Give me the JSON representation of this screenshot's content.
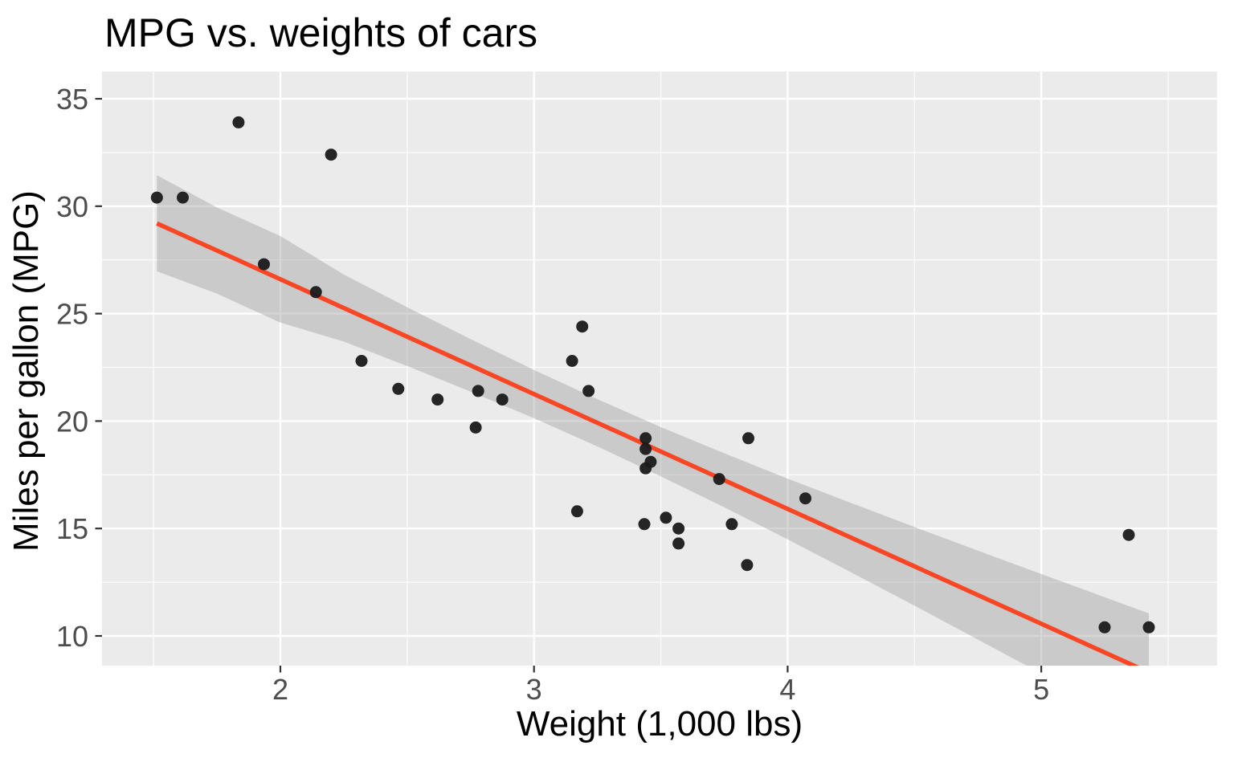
{
  "chart_data": {
    "type": "scatter",
    "title": "MPG vs. weights of cars",
    "xlabel": "Weight (1,000 lbs)",
    "ylabel": "Miles per gallon (MPG)",
    "x_ticks": [
      2,
      3,
      4,
      5
    ],
    "y_ticks": [
      10,
      15,
      20,
      25,
      30,
      35
    ],
    "xlim": [
      1.2968,
      5.6934
    ],
    "ylim": [
      8.617,
      36.271
    ],
    "grid": {
      "major": true,
      "minor": true,
      "legend_position": "none"
    },
    "points": [
      [
        2.62,
        21.0
      ],
      [
        2.875,
        21.0
      ],
      [
        2.32,
        22.8
      ],
      [
        3.215,
        21.4
      ],
      [
        3.44,
        18.7
      ],
      [
        3.46,
        18.1
      ],
      [
        3.57,
        14.3
      ],
      [
        3.19,
        24.4
      ],
      [
        3.15,
        22.8
      ],
      [
        3.44,
        19.2
      ],
      [
        3.44,
        17.8
      ],
      [
        4.07,
        16.4
      ],
      [
        3.73,
        17.3
      ],
      [
        3.78,
        15.2
      ],
      [
        5.25,
        10.4
      ],
      [
        5.424,
        10.4
      ],
      [
        5.345,
        14.7
      ],
      [
        2.2,
        32.4
      ],
      [
        1.615,
        30.4
      ],
      [
        1.835,
        33.9
      ],
      [
        2.465,
        21.5
      ],
      [
        3.52,
        15.5
      ],
      [
        3.435,
        15.2
      ],
      [
        3.84,
        13.3
      ],
      [
        3.845,
        19.2
      ],
      [
        1.935,
        27.3
      ],
      [
        2.14,
        26.0
      ],
      [
        1.513,
        30.4
      ],
      [
        3.17,
        15.8
      ],
      [
        2.77,
        19.7
      ],
      [
        3.57,
        15.0
      ],
      [
        2.78,
        21.4
      ]
    ],
    "trend_line": {
      "fit": "linear regression (lm)",
      "intercept": 37.285,
      "slope": -5.344,
      "x_start": 1.513,
      "x_end": 5.424
    },
    "ci_ribbon": {
      "level": 0.95,
      "x": [
        1.513,
        1.75,
        2.0,
        2.25,
        2.5,
        2.75,
        3.0,
        3.25,
        3.5,
        3.75,
        4.0,
        4.25,
        4.5,
        4.75,
        5.0,
        5.25,
        5.424
      ],
      "upper": [
        31.44,
        29.94,
        28.61,
        26.82,
        25.3,
        23.81,
        22.38,
        21.02,
        19.72,
        18.5,
        17.32,
        16.19,
        15.07,
        13.97,
        12.88,
        11.8,
        11.05
      ],
      "lower": [
        26.97,
        25.93,
        24.58,
        23.7,
        22.56,
        21.37,
        20.13,
        18.82,
        17.43,
        15.99,
        14.49,
        12.96,
        11.41,
        9.83,
        8.25,
        6.66,
        5.55
      ]
    },
    "colors": {
      "background": "#FFFFFF",
      "panel": "#EBEBEB",
      "gridline": "#FFFFFF",
      "point": "#1A1A1A",
      "trend_line": "#F94625",
      "ribbon": "#999999",
      "ribbon_alpha": 0.4,
      "tick_mark": "#333333",
      "tick_text": "#4D4D4D",
      "title_text": "#000000"
    }
  }
}
